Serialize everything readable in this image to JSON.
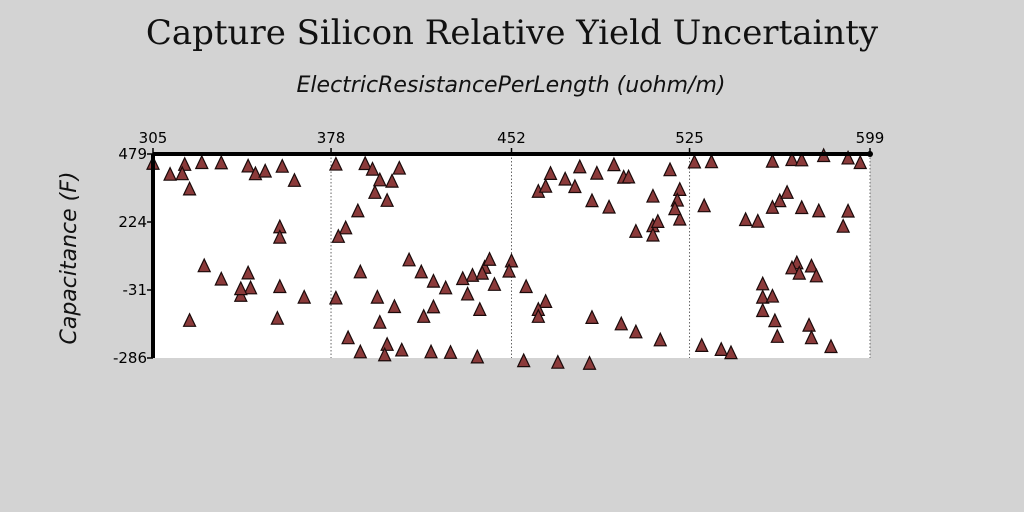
{
  "chart_data": {
    "type": "scatter",
    "title": "Capture Silicon Relative Yield Uncertainty",
    "xlabel": "ElectricResistancePerLength (uohm/m)",
    "ylabel": "Capacitance (F)",
    "xlim": [
      305,
      599
    ],
    "ylim": [
      -286,
      479
    ],
    "x_ticks": [
      "305",
      "378",
      "452",
      "525",
      "599"
    ],
    "y_ticks": [
      "479",
      "224",
      "-31",
      "-286"
    ],
    "x_tick_values": [
      305,
      378,
      452,
      525,
      599
    ],
    "y_tick_values": [
      479,
      224,
      -31,
      -286
    ],
    "x_axis_position": "top",
    "grid": "vertical-dotted",
    "marker": "triangle",
    "marker_color": "#8b3a3a",
    "series": [
      {
        "points": [
          [
            318,
            438
          ],
          [
            325,
            445
          ],
          [
            333,
            444
          ],
          [
            317,
            403
          ],
          [
            344,
            432
          ],
          [
            347,
            403
          ],
          [
            358,
            431
          ],
          [
            351,
            413
          ],
          [
            363,
            378
          ],
          [
            357,
            204
          ],
          [
            357,
            165
          ],
          [
            312,
            401
          ],
          [
            305,
            442
          ],
          [
            320,
            346
          ],
          [
            326,
            58
          ],
          [
            333,
            8
          ],
          [
            344,
            31
          ],
          [
            345,
            -25
          ],
          [
            341,
            -53
          ],
          [
            341,
            -28
          ],
          [
            357,
            -20
          ],
          [
            367,
            -60
          ],
          [
            356,
            -139
          ],
          [
            320,
            -147
          ],
          [
            380,
            439
          ],
          [
            392,
            441
          ],
          [
            395,
            420
          ],
          [
            406,
            424
          ],
          [
            398,
            380
          ],
          [
            403,
            375
          ],
          [
            401,
            303
          ],
          [
            396,
            333
          ],
          [
            389,
            264
          ],
          [
            384,
            200
          ],
          [
            381,
            168
          ],
          [
            380,
            -63
          ],
          [
            385,
            -212
          ],
          [
            398,
            -154
          ],
          [
            401,
            -237
          ],
          [
            407,
            -258
          ],
          [
            400,
            -276
          ],
          [
            390,
            -265
          ],
          [
            419,
            -265
          ],
          [
            427,
            -267
          ],
          [
            438,
            -284
          ],
          [
            457,
            -298
          ],
          [
            471,
            -304
          ],
          [
            484,
            -308
          ],
          [
            480,
            429
          ],
          [
            487,
            405
          ],
          [
            494,
            437
          ],
          [
            498,
            390
          ],
          [
            517,
            418
          ],
          [
            527,
            447
          ],
          [
            534,
            448
          ],
          [
            559,
            450
          ],
          [
            567,
            456
          ],
          [
            571,
            455
          ],
          [
            580,
            471
          ],
          [
            590,
            462
          ],
          [
            595,
            445
          ],
          [
            562,
            302
          ],
          [
            565,
            333
          ],
          [
            571,
            276
          ],
          [
            559,
            277
          ],
          [
            548,
            231
          ],
          [
            553,
            225
          ],
          [
            578,
            264
          ],
          [
            590,
            263
          ],
          [
            588,
            206
          ],
          [
            569,
            69
          ],
          [
            575,
            57
          ],
          [
            567,
            50
          ],
          [
            570,
            30
          ],
          [
            577,
            20
          ],
          [
            555,
            -10
          ],
          [
            555,
            -60
          ],
          [
            559,
            -56
          ],
          [
            555,
            -110
          ],
          [
            560,
            -148
          ],
          [
            574,
            -165
          ],
          [
            561,
            -207
          ],
          [
            575,
            -212
          ],
          [
            583,
            -245
          ],
          [
            531,
            283
          ],
          [
            521,
            233
          ],
          [
            510,
            208
          ],
          [
            503,
            187
          ],
          [
            485,
            302
          ],
          [
            492,
            278
          ],
          [
            463,
            337
          ],
          [
            466,
            356
          ],
          [
            478,
            355
          ],
          [
            468,
            404
          ],
          [
            474,
            383
          ],
          [
            500,
            391
          ],
          [
            510,
            319
          ],
          [
            521,
            344
          ],
          [
            520,
            304
          ],
          [
            519,
            272
          ],
          [
            512,
            224
          ],
          [
            510,
            173
          ],
          [
            441,
            52
          ],
          [
            443,
            82
          ],
          [
            452,
            76
          ],
          [
            451,
            38
          ],
          [
            436,
            22
          ],
          [
            445,
            -12
          ],
          [
            440,
            30
          ],
          [
            458,
            -20
          ],
          [
            466,
            -76
          ],
          [
            463,
            -106
          ],
          [
            463,
            -132
          ],
          [
            485,
            -136
          ],
          [
            497,
            -160
          ],
          [
            503,
            -190
          ],
          [
            513,
            -220
          ],
          [
            530,
            -241
          ],
          [
            538,
            -256
          ],
          [
            542,
            -268
          ],
          [
            420,
            0
          ],
          [
            425,
            -25
          ],
          [
            432,
            10
          ],
          [
            434,
            -48
          ],
          [
            415,
            35
          ],
          [
            410,
            80
          ],
          [
            390,
            35
          ],
          [
            397,
            -60
          ],
          [
            404,
            -95
          ],
          [
            420,
            -96
          ],
          [
            416,
            -132
          ],
          [
            439,
            -106
          ]
        ]
      }
    ]
  }
}
